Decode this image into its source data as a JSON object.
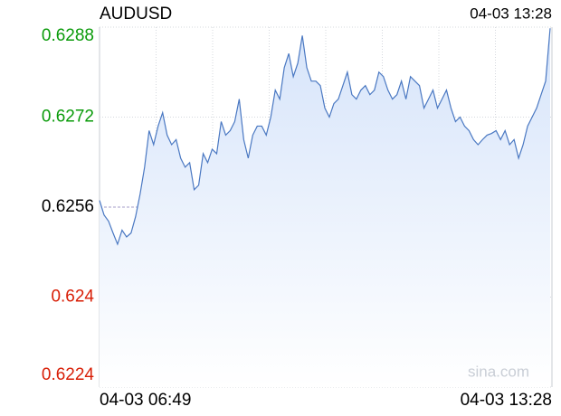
{
  "chart_data": {
    "type": "line",
    "title": "AUDUSD",
    "updated": "04-03 13:28",
    "watermark": "sina.com",
    "categories": [
      "04-03 06:49",
      null,
      null,
      null,
      null,
      null,
      null,
      null,
      null,
      null,
      null,
      null,
      null,
      null,
      null,
      null,
      null,
      null,
      null,
      null,
      null,
      null,
      null,
      null,
      null,
      null,
      null,
      null,
      null,
      null,
      null,
      null,
      null,
      null,
      null,
      null,
      null,
      null,
      null,
      null,
      null,
      null,
      null,
      null,
      null,
      null,
      null,
      null,
      null,
      null,
      null,
      null,
      null,
      null,
      null,
      null,
      null,
      null,
      null,
      null,
      null,
      null,
      null,
      null,
      null,
      null,
      null,
      null,
      null,
      null,
      null,
      null,
      null,
      null,
      null,
      null,
      null,
      null,
      null,
      null,
      null,
      null,
      null,
      null,
      null,
      null,
      null,
      null,
      null,
      null,
      null,
      null,
      null,
      null,
      null,
      null,
      null,
      null,
      null,
      null,
      "04-03 13:28"
    ],
    "series": [
      {
        "name": "AUDUSD",
        "color": "#4a78c2",
        "values": [
          0.62572,
          0.62546,
          0.62535,
          0.62514,
          0.62494,
          0.62519,
          0.62507,
          0.62514,
          0.62543,
          0.62583,
          0.62631,
          0.62696,
          0.62671,
          0.62704,
          0.62728,
          0.62688,
          0.62671,
          0.6268,
          0.62647,
          0.62631,
          0.62639,
          0.62591,
          0.62599,
          0.62655,
          0.62639,
          0.62663,
          0.62655,
          0.62712,
          0.62688,
          0.62696,
          0.62712,
          0.62752,
          0.6268,
          0.62647,
          0.62688,
          0.62704,
          0.62704,
          0.62688,
          0.6272,
          0.62768,
          0.62752,
          0.62808,
          0.62833,
          0.62792,
          0.62816,
          0.62865,
          0.62808,
          0.62784,
          0.62784,
          0.62776,
          0.62736,
          0.6272,
          0.62744,
          0.62752,
          0.62776,
          0.628,
          0.6276,
          0.62752,
          0.62768,
          0.62776,
          0.6276,
          0.62768,
          0.628,
          0.62792,
          0.62768,
          0.62752,
          0.6276,
          0.62784,
          0.62752,
          0.62792,
          0.62784,
          0.62776,
          0.62736,
          0.62752,
          0.62768,
          0.62736,
          0.62752,
          0.62768,
          0.62736,
          0.62712,
          0.6272,
          0.62704,
          0.62696,
          0.6268,
          0.62671,
          0.6268,
          0.62688,
          0.62691,
          0.62696,
          0.6268,
          0.62696,
          0.62671,
          0.6268,
          0.62647,
          0.62671,
          0.62704,
          0.6272,
          0.62736,
          0.6276,
          0.62784,
          0.62878
        ]
      }
    ],
    "ylim": [
      0.6224,
      0.6288
    ],
    "yticks": [
      0.6288,
      0.6272,
      0.6256,
      0.624,
      0.6224
    ],
    "tick_colors": [
      "#0a9b0a",
      "#0a9b0a",
      "#000000",
      "#d81e06",
      "#d81e06"
    ],
    "base_line_tick": 2,
    "base_line_color": "#a69cc9",
    "fill_top": "#d6e4fa",
    "fill_bottom": "#ffffff",
    "grid": true
  }
}
